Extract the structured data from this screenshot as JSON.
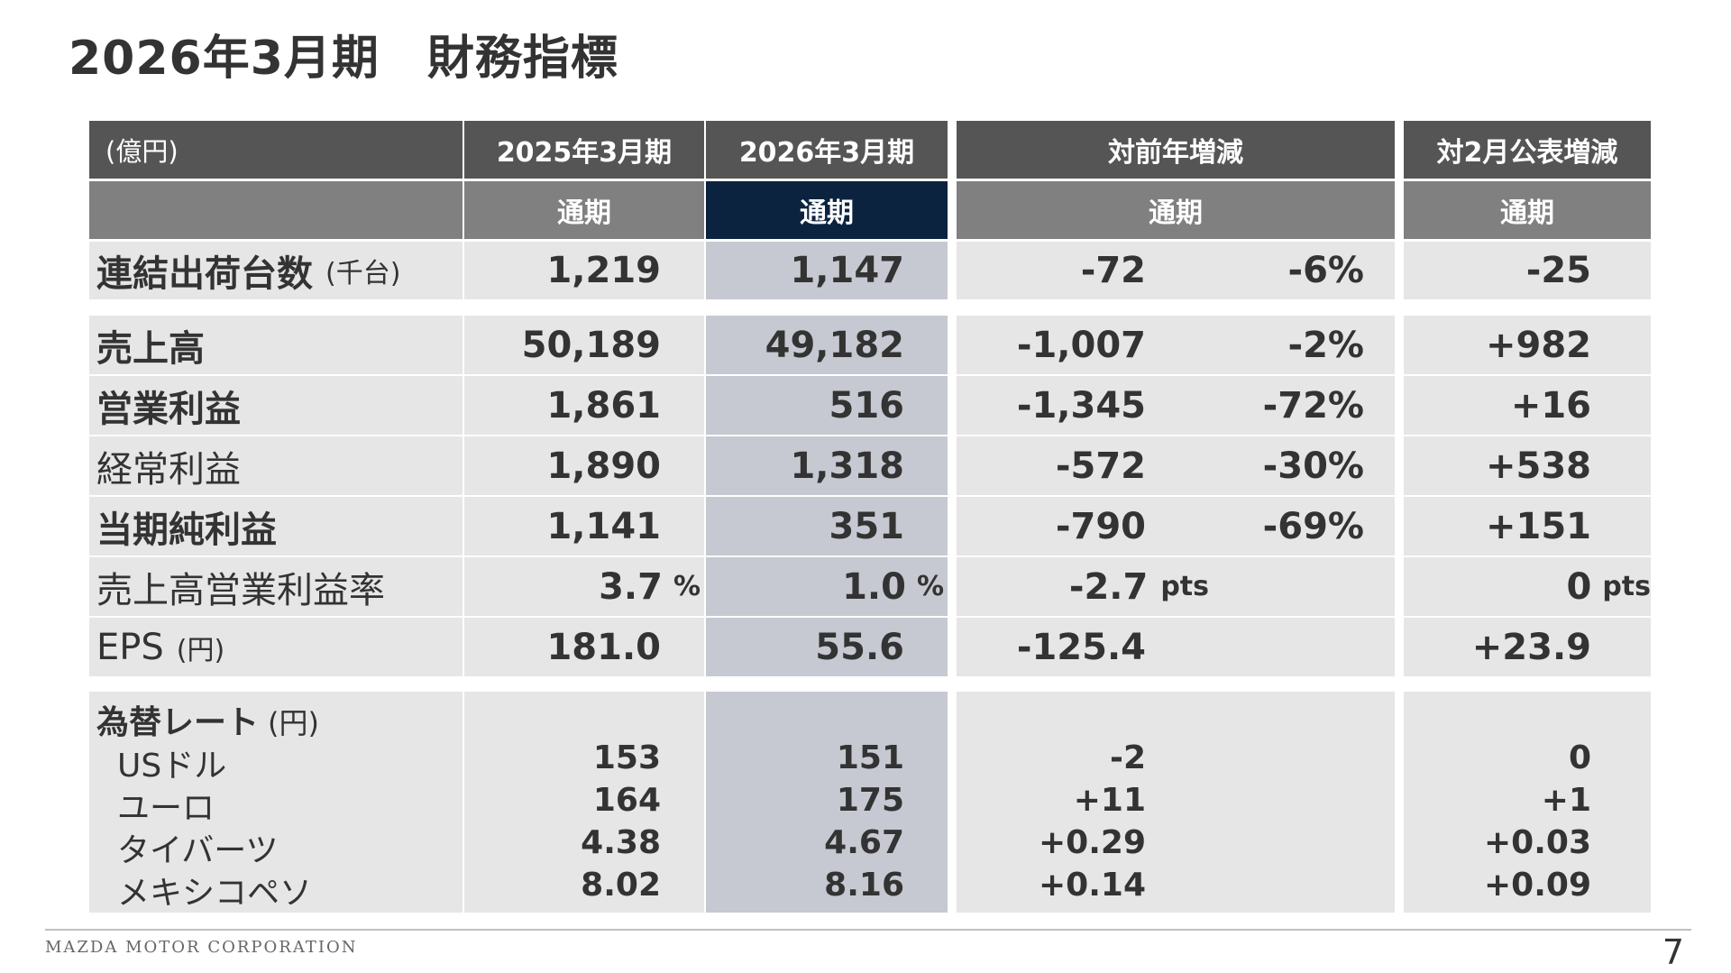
{
  "title": "2026年3月期　財務指標",
  "header": {
    "unit": "(億円)",
    "col_fy2025": "2025年3月期",
    "col_fy2026": "2026年3月期",
    "col_yoy": "対前年増減",
    "col_vs_feb": "対2月公表増減",
    "sub": "通期"
  },
  "shipments": {
    "label": "連結出荷台数",
    "unit": "(千台)",
    "fy2025": "1,219",
    "fy2026": "1,147",
    "yoy": "-72",
    "yoy_pct": "-6%",
    "vs_feb": "-25"
  },
  "rows": [
    {
      "label": "売上高",
      "fy2025": "50,189",
      "fy2026": "49,182",
      "yoy": "-1,007",
      "yoy_pct": "-2%",
      "vs_feb": "+982"
    },
    {
      "label": "営業利益",
      "fy2025": "1,861",
      "fy2026": "516",
      "yoy": "-1,345",
      "yoy_pct": "-72%",
      "vs_feb": "+16"
    },
    {
      "label": "経常利益",
      "fy2025": "1,890",
      "fy2026": "1,318",
      "yoy": "-572",
      "yoy_pct": "-30%",
      "vs_feb": "+538"
    },
    {
      "label": "当期純利益",
      "fy2025": "1,141",
      "fy2026": "351",
      "yoy": "-790",
      "yoy_pct": "-69%",
      "vs_feb": "+151"
    },
    {
      "label": "売上高営業利益率",
      "fy2025": "3.7",
      "fy2025_unit": "%",
      "fy2026": "1.0",
      "fy2026_unit": "%",
      "yoy": "-2.7",
      "yoy_unit": "pts",
      "vs_feb": "0",
      "vs_feb_unit": "pts"
    },
    {
      "label": "EPS",
      "label_unit": "(円)",
      "fy2025": "181.0",
      "fy2026": "55.6",
      "yoy": "-125.4",
      "vs_feb": "+23.9"
    }
  ],
  "fx": {
    "label": "為替レート",
    "unit": "(円)",
    "items": [
      {
        "label": "USドル",
        "fy2025": "153",
        "fy2026": "151",
        "yoy": "-2",
        "vs_feb": "0"
      },
      {
        "label": "ユーロ",
        "fy2025": "164",
        "fy2026": "175",
        "yoy": "+11",
        "vs_feb": "+1"
      },
      {
        "label": "タイバーツ",
        "fy2025": "4.38",
        "fy2026": "4.67",
        "yoy": "+0.29",
        "vs_feb": "+0.03"
      },
      {
        "label": "メキシコペソ",
        "fy2025": "8.02",
        "fy2026": "8.16",
        "yoy": "+0.14",
        "vs_feb": "+0.09"
      }
    ]
  },
  "footer": {
    "company": "MAZDA MOTOR CORPORATION",
    "page": "7"
  }
}
